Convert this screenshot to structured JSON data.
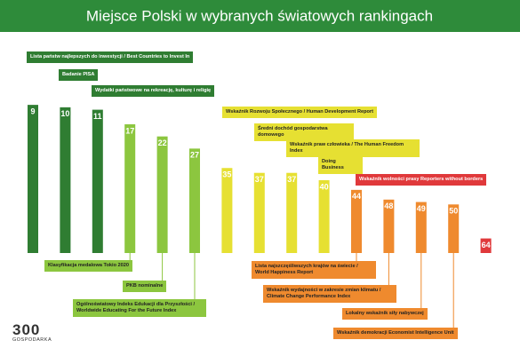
{
  "chart_data": {
    "type": "bar",
    "title": "Miejsce Polski w wybranych światowych rankingach",
    "categories": [
      "Lista państw najlepszych do inwestycji / Best Countries to Invest In",
      "Badanie PISA",
      "Wydatki państwowe na rekreację, kulturę i religię",
      "Klasyfikacja medalowa Tokio 2020",
      "PKB nominalne",
      "Ogólnoświatowy Indeks Edukacji dla Przyszłości / Worldwide Educating For the Future Index",
      "Wskaźnik Rozwoju Społecznego / Human Development Report",
      "Średni dochód gospodarstwa domowego",
      "Wskaźnik praw człowieka / The Human Freedom Index",
      "Doing Business",
      "Lista najszczęśliwszych krajów na świecie / World Happiness Report",
      "Wskaźnik wydajności w zakresie zmian klimatu / Climate Change Performance Index",
      "Lokalny wskaźnik siły nabywczej",
      "Wskaźnik demokracji Economist Intelligence Unit",
      "Wskaźnik wolności prasy Reporters without borders"
    ],
    "values": [
      9,
      10,
      11,
      17,
      22,
      27,
      35,
      37,
      37,
      40,
      44,
      48,
      49,
      50,
      64
    ],
    "colors": [
      "#2f7d32",
      "#2f7d32",
      "#2f7d32",
      "#8cc63f",
      "#8cc63f",
      "#8cc63f",
      "#e6e032",
      "#e6e032",
      "#e6e032",
      "#e6e032",
      "#ef8a2e",
      "#ef8a2e",
      "#ef8a2e",
      "#ef8a2e",
      "#e0393b"
    ],
    "ylim": [
      0,
      70
    ],
    "logo": {
      "number": "300",
      "name": "GOSPODARKA"
    }
  }
}
